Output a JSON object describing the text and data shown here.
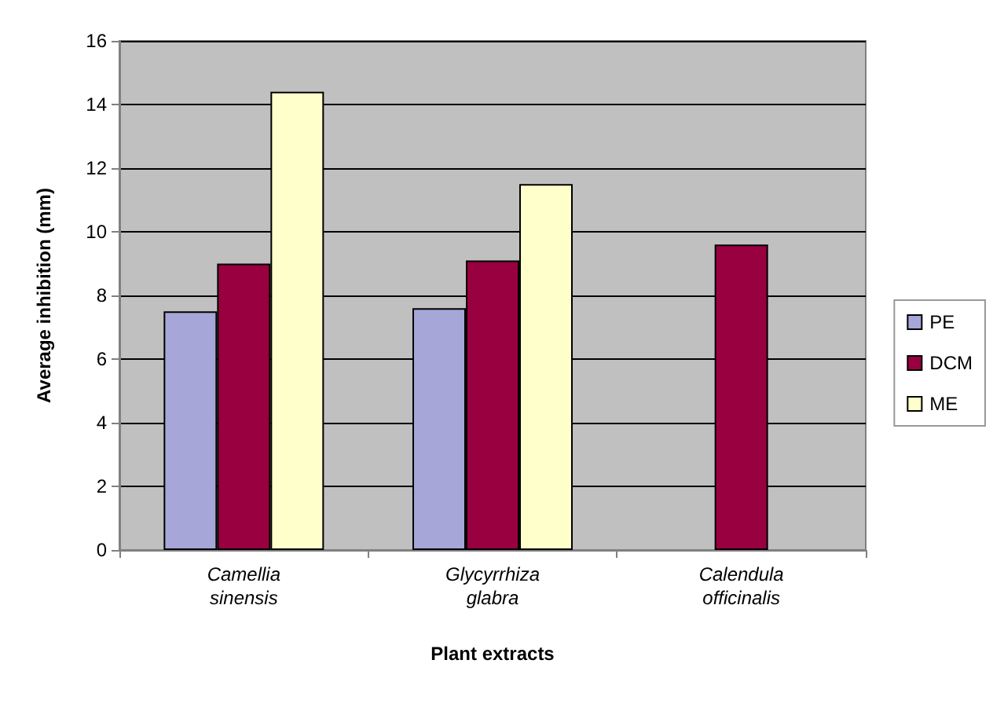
{
  "chart_data": {
    "type": "bar",
    "xlabel": "Plant extracts",
    "ylabel": "Average inhibition (mm)",
    "categories": [
      "Camellia\nsinensis",
      "Glycyrrhiza\nglabra",
      "Calendula\nofficinalis"
    ],
    "series": [
      {
        "name": "PE",
        "color": "#a6a6d8",
        "values": [
          7.5,
          7.6,
          null
        ]
      },
      {
        "name": "DCM",
        "color": "#990040",
        "values": [
          9.0,
          9.1,
          9.6
        ]
      },
      {
        "name": "ME",
        "color": "#ffffcc",
        "values": [
          14.4,
          11.5,
          null
        ]
      }
    ],
    "ylim": [
      0,
      16
    ],
    "yticks": [
      0,
      2,
      4,
      6,
      8,
      10,
      12,
      14,
      16
    ],
    "grid": "y",
    "legend": "right"
  }
}
